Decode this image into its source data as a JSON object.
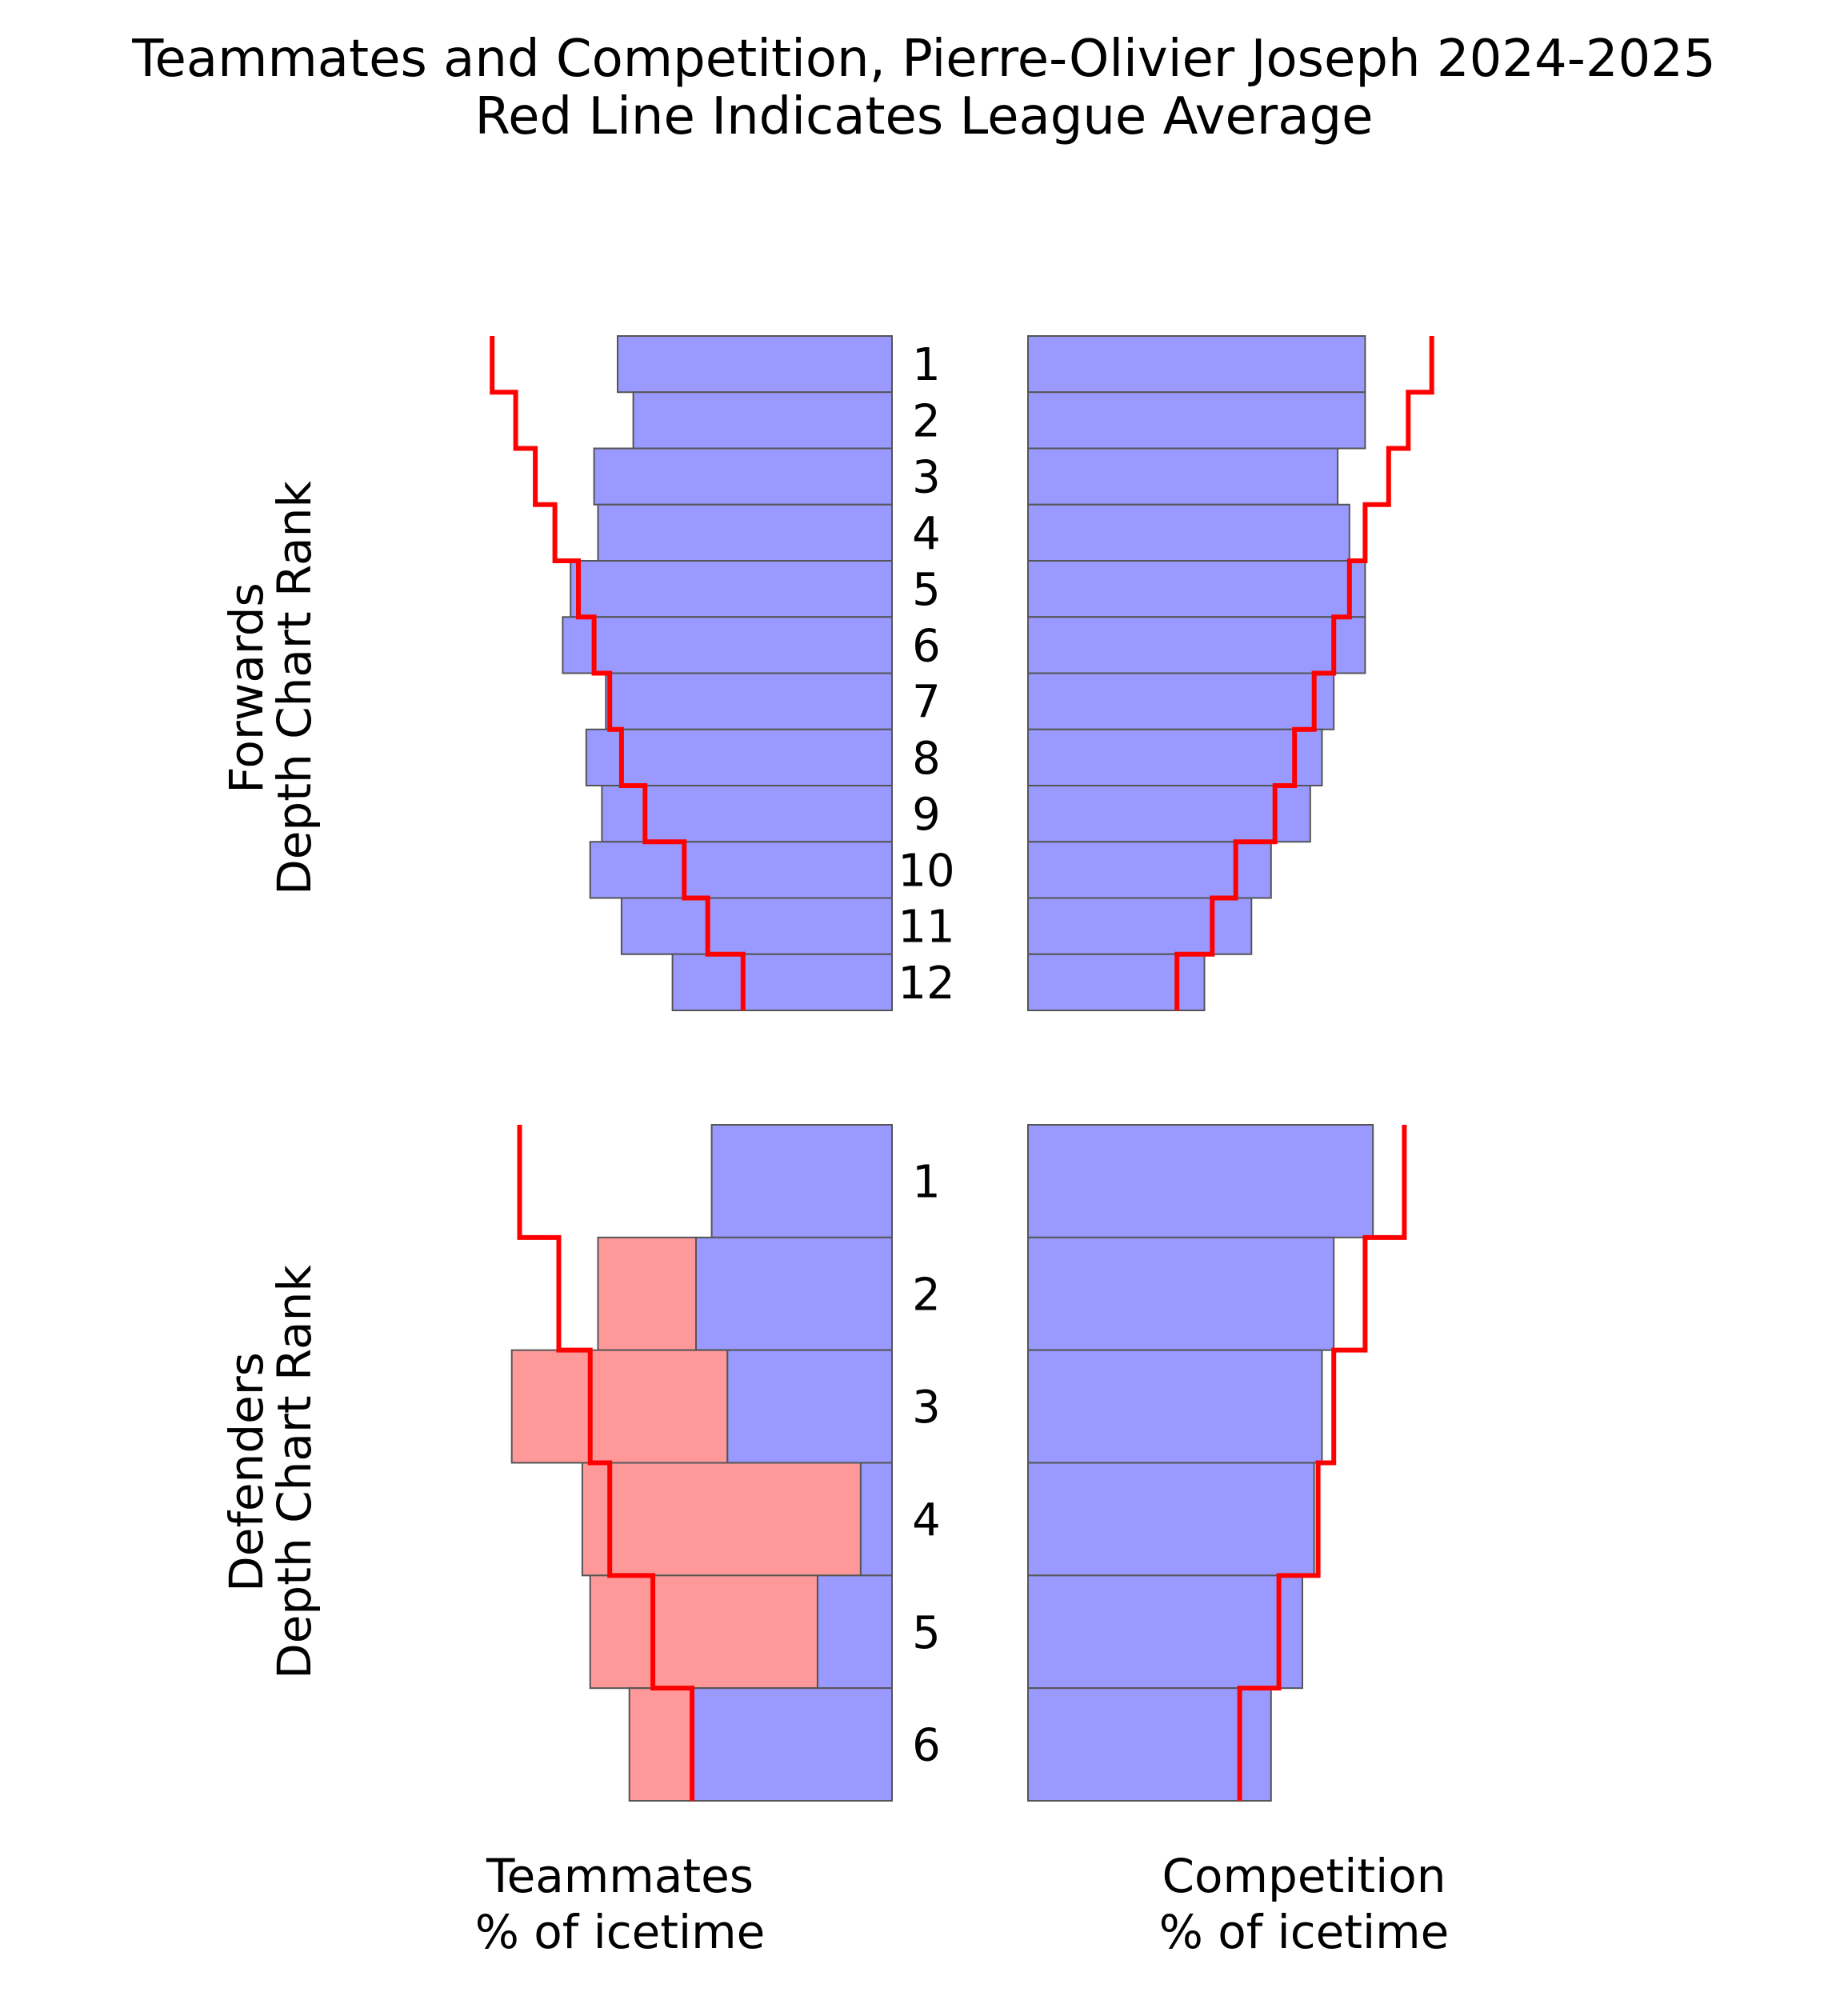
{
  "chart_data": {
    "type": "bar",
    "title": "Teammates and Competition, Pierre-Olivier Joseph 2024-2025",
    "subtitle": "Red Line Indicates League Average",
    "colors": {
      "teammate_bar": "#9999ff",
      "defender_pair_bar": "#ff9999",
      "league_average_line": "#ff0000",
      "bar_edge": "#555555"
    },
    "xlabel_left": [
      "Teammates",
      "% of icetime"
    ],
    "xlabel_right": [
      "Competition",
      "% of icetime"
    ],
    "grid": false,
    "panels": {
      "forwards": {
        "ylabel": [
          "Forwards",
          "Depth Chart Rank"
        ],
        "ranks": [
          "1",
          "2",
          "3",
          "4",
          "5",
          "6",
          "7",
          "8",
          "9",
          "10",
          "11",
          "12"
        ],
        "teammates": [
          35,
          33,
          38,
          37.5,
          41,
          42,
          36.5,
          39,
          37,
          38.5,
          34.5,
          28
        ],
        "teammates_league_avg": [
          51,
          48,
          45.5,
          43,
          40,
          38,
          36,
          34.5,
          31.5,
          26.5,
          23.5,
          19
        ],
        "competition": [
          43,
          43,
          39.5,
          41,
          43,
          43,
          39,
          37.5,
          36,
          31,
          28.5,
          22.5
        ],
        "competition_league_avg": [
          51.5,
          48.5,
          46,
          43,
          41,
          39,
          36.5,
          34,
          31.5,
          26.5,
          23.5,
          19
        ]
      },
      "defenders": {
        "ylabel": [
          "Defenders",
          "Depth Chart Rank"
        ],
        "ranks": [
          "1",
          "2",
          "3",
          "4",
          "5",
          "6"
        ],
        "teammates": [
          23,
          25,
          21,
          4,
          9.5,
          25.5
        ],
        "defender_pair": [
          0,
          12.5,
          27.5,
          35.5,
          29,
          8
        ],
        "teammates_league_avg": [
          47.5,
          42.5,
          38.5,
          36,
          30.5,
          25.5
        ],
        "competition": [
          44,
          39,
          37.5,
          36.5,
          35,
          31
        ],
        "competition_league_avg": [
          48,
          43,
          39,
          37,
          32,
          27
        ]
      }
    }
  }
}
